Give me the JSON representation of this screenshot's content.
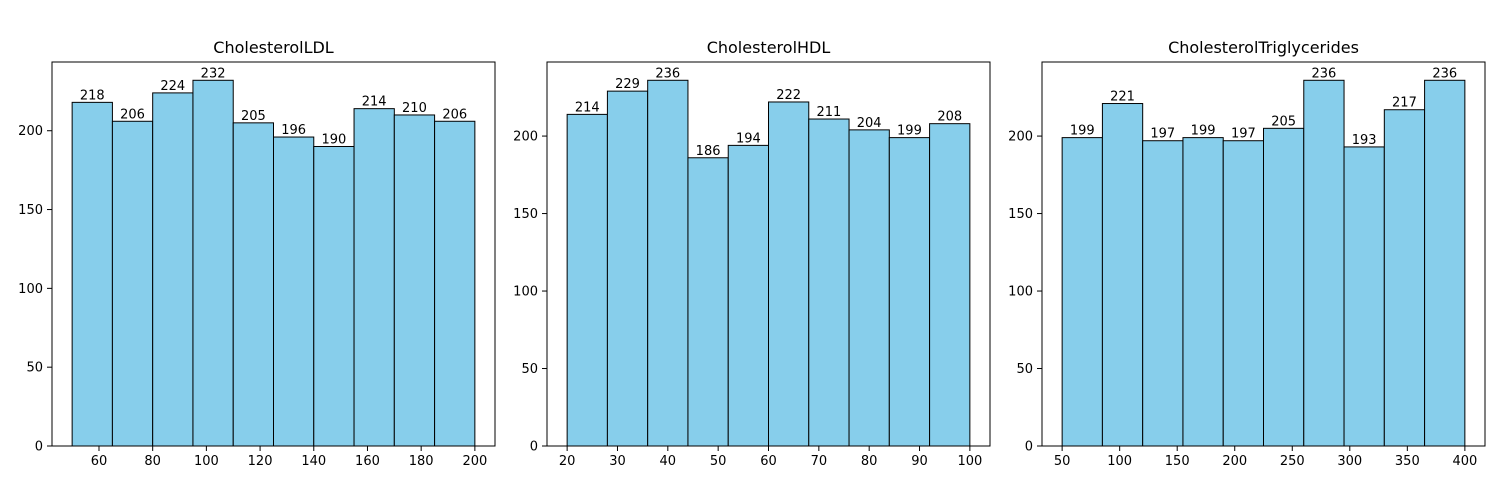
{
  "style": {
    "bar_color": "#87ceeb",
    "edge_color": "#000000"
  },
  "chart_data": [
    {
      "type": "bar",
      "title": "CholesterolLDL",
      "bin_edges": [
        50,
        65,
        80,
        95,
        110,
        125,
        140,
        155,
        170,
        185,
        200
      ],
      "values": [
        218,
        206,
        224,
        232,
        205,
        196,
        190,
        214,
        210,
        206
      ],
      "xlim": [
        42.5,
        207.5
      ],
      "ylim": [
        0,
        243.6
      ],
      "xticks": [
        60,
        80,
        100,
        120,
        140,
        160,
        180,
        200
      ],
      "yticks": [
        0,
        50,
        100,
        150,
        200
      ],
      "grid": false
    },
    {
      "type": "bar",
      "title": "CholesterolHDL",
      "bin_edges": [
        20,
        28,
        36,
        44,
        52,
        60,
        68,
        76,
        84,
        92,
        100
      ],
      "values": [
        214,
        229,
        236,
        186,
        194,
        222,
        211,
        204,
        199,
        208
      ],
      "xlim": [
        16,
        104
      ],
      "ylim": [
        0,
        247.8
      ],
      "xticks": [
        20,
        30,
        40,
        50,
        60,
        70,
        80,
        90,
        100
      ],
      "yticks": [
        0,
        50,
        100,
        150,
        200
      ],
      "grid": false
    },
    {
      "type": "bar",
      "title": "CholesterolTriglycerides",
      "bin_edges": [
        50,
        85,
        120,
        155,
        190,
        225,
        260,
        295,
        330,
        365,
        400
      ],
      "values": [
        199,
        221,
        197,
        199,
        197,
        205,
        236,
        193,
        217,
        236
      ],
      "xlim": [
        32.5,
        417.5
      ],
      "ylim": [
        0,
        247.8
      ],
      "xticks": [
        50,
        100,
        150,
        200,
        250,
        300,
        350,
        400
      ],
      "yticks": [
        0,
        50,
        100,
        150,
        200
      ],
      "grid": false
    }
  ]
}
